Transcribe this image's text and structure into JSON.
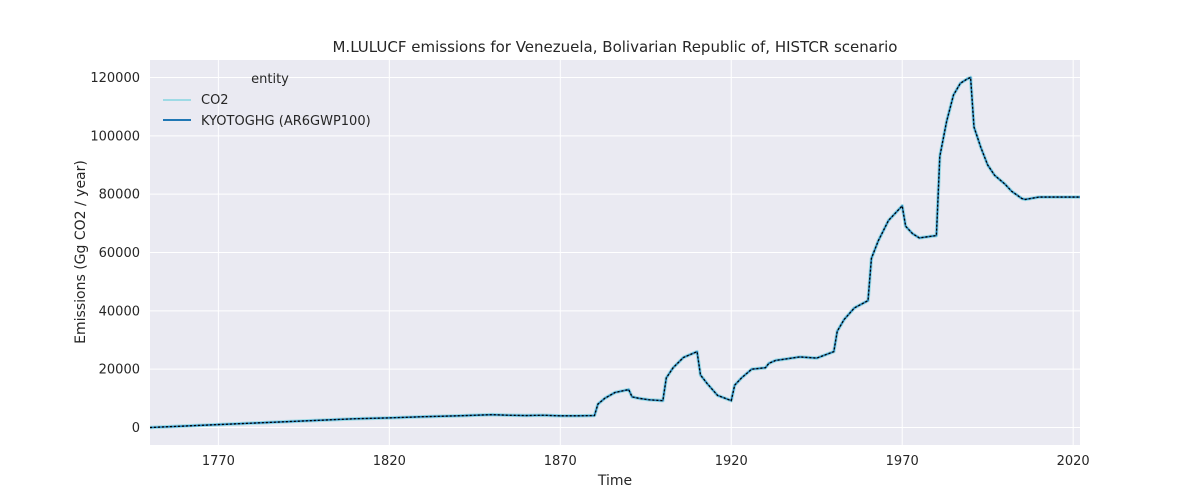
{
  "chart_data": {
    "type": "line",
    "title": "M.LULUCF emissions for Venezuela, Bolivarian Republic of, HISTCR scenario",
    "xlabel": "Time",
    "ylabel": "Emissions (Gg CO2 / year)",
    "xlim": [
      1750,
      2022
    ],
    "ylim": [
      -6000,
      126000
    ],
    "x_ticks": [
      1770,
      1820,
      1870,
      1920,
      1970,
      2020
    ],
    "y_ticks": [
      0,
      20000,
      40000,
      60000,
      80000,
      100000,
      120000
    ],
    "x_tick_labels": [
      "1770",
      "1820",
      "1870",
      "1920",
      "1970",
      "2020"
    ],
    "y_tick_labels": [
      "0",
      "20000",
      "40000",
      "60000",
      "80000",
      "100000",
      "120000"
    ],
    "grid": true,
    "background_color": "#eaeaf2",
    "legend": {
      "title": "entity",
      "placement": "top-left",
      "entries": [
        "CO2",
        "KYOTOGHG (AR6GWP100)"
      ]
    },
    "series": [
      {
        "name": "CO2",
        "color": "#9edae5",
        "style": "solid",
        "x": [
          1750,
          1760,
          1770,
          1780,
          1790,
          1800,
          1810,
          1820,
          1830,
          1840,
          1850,
          1855,
          1860,
          1865,
          1870,
          1875,
          1880,
          1881,
          1883,
          1886,
          1890,
          1891,
          1893,
          1896,
          1900,
          1901,
          1903,
          1906,
          1910,
          1911,
          1913,
          1916,
          1920,
          1921,
          1923,
          1926,
          1930,
          1931,
          1933,
          1936,
          1940,
          1945,
          1950,
          1951,
          1953,
          1956,
          1960,
          1961,
          1963,
          1966,
          1970,
          1971,
          1973,
          1975,
          1980,
          1981,
          1983,
          1985,
          1987,
          1989,
          1990,
          1991,
          1993,
          1995,
          1997,
          2000,
          2002,
          2005,
          2006,
          2010,
          2015,
          2020,
          2022
        ],
        "values": [
          0,
          500,
          1000,
          1500,
          2000,
          2500,
          3000,
          3300,
          3700,
          4000,
          4400,
          4200,
          4100,
          4200,
          4000,
          4000,
          4100,
          8000,
          10000,
          12000,
          13000,
          10500,
          10000,
          9500,
          9200,
          17000,
          20500,
          24000,
          26000,
          18000,
          15000,
          11000,
          9200,
          14500,
          17000,
          20000,
          20500,
          22000,
          23000,
          23500,
          24200,
          23800,
          26000,
          33000,
          37000,
          41000,
          43500,
          58000,
          64000,
          71000,
          76000,
          69000,
          66500,
          65000,
          65800,
          93000,
          105000,
          114000,
          118000,
          119500,
          120000,
          103000,
          96000,
          90000,
          86500,
          83500,
          81000,
          78500,
          78200,
          79000,
          79000,
          79000,
          79000
        ]
      },
      {
        "name": "KYOTOGHG (AR6GWP100)",
        "color": "#1f77b4",
        "style": "solid",
        "x": [
          1750,
          1760,
          1770,
          1780,
          1790,
          1800,
          1810,
          1820,
          1830,
          1840,
          1850,
          1855,
          1860,
          1865,
          1870,
          1875,
          1880,
          1881,
          1883,
          1886,
          1890,
          1891,
          1893,
          1896,
          1900,
          1901,
          1903,
          1906,
          1910,
          1911,
          1913,
          1916,
          1920,
          1921,
          1923,
          1926,
          1930,
          1931,
          1933,
          1936,
          1940,
          1945,
          1950,
          1951,
          1953,
          1956,
          1960,
          1961,
          1963,
          1966,
          1970,
          1971,
          1973,
          1975,
          1980,
          1981,
          1983,
          1985,
          1987,
          1989,
          1990,
          1991,
          1993,
          1995,
          1997,
          2000,
          2002,
          2005,
          2006,
          2010,
          2015,
          2020,
          2022
        ],
        "values": [
          0,
          500,
          1000,
          1500,
          2000,
          2500,
          3000,
          3300,
          3700,
          4000,
          4400,
          4200,
          4100,
          4200,
          4000,
          4000,
          4100,
          8000,
          10000,
          12000,
          13000,
          10500,
          10000,
          9500,
          9200,
          17000,
          20500,
          24000,
          26000,
          18000,
          15000,
          11000,
          9200,
          14500,
          17000,
          20000,
          20500,
          22000,
          23000,
          23500,
          24200,
          23800,
          26000,
          33000,
          37000,
          41000,
          43500,
          58000,
          64000,
          71000,
          76000,
          69000,
          66500,
          65000,
          65800,
          93000,
          105000,
          114000,
          118000,
          119500,
          120000,
          103000,
          96000,
          90000,
          86500,
          83500,
          81000,
          78500,
          78200,
          79000,
          79000,
          79000,
          79000
        ]
      }
    ],
    "overlay": {
      "color": "#000000",
      "style": "dotted"
    }
  }
}
